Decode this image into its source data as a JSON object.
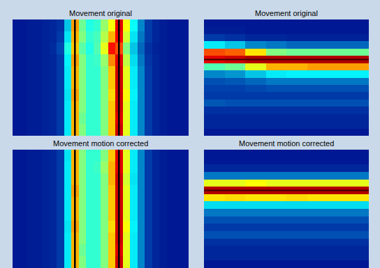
{
  "chart_data": [
    {
      "type": "heatmap",
      "title": "Movement original",
      "color": "Jet",
      "tick_labels": false,
      "zlim": [
        0,
        1
      ],
      "vlines": [
        8,
        14
      ],
      "cells": [
        [
          0.05,
          0.05,
          0.06,
          0.06,
          0.07,
          0.08,
          0.1,
          0.3,
          0.72,
          0.48,
          0.4,
          0.42,
          0.52,
          0.62,
          0.9,
          0.62,
          0.38,
          0.22,
          0.12,
          0.08,
          0.06,
          0.05,
          0.05,
          0.05
        ],
        [
          0.05,
          0.05,
          0.06,
          0.06,
          0.07,
          0.08,
          0.12,
          0.34,
          0.7,
          0.5,
          0.42,
          0.44,
          0.55,
          0.7,
          0.88,
          0.58,
          0.34,
          0.2,
          0.12,
          0.08,
          0.06,
          0.05,
          0.05,
          0.05
        ],
        [
          0.05,
          0.05,
          0.06,
          0.06,
          0.07,
          0.09,
          0.14,
          0.4,
          0.68,
          0.46,
          0.4,
          0.45,
          0.6,
          0.86,
          0.8,
          0.5,
          0.3,
          0.18,
          0.1,
          0.07,
          0.06,
          0.05,
          0.05,
          0.05
        ],
        [
          0.05,
          0.05,
          0.06,
          0.06,
          0.07,
          0.08,
          0.12,
          0.36,
          0.72,
          0.5,
          0.42,
          0.43,
          0.52,
          0.74,
          0.9,
          0.56,
          0.33,
          0.2,
          0.11,
          0.08,
          0.06,
          0.05,
          0.05,
          0.05
        ],
        [
          0.05,
          0.05,
          0.06,
          0.06,
          0.07,
          0.08,
          0.12,
          0.35,
          0.7,
          0.5,
          0.42,
          0.42,
          0.5,
          0.68,
          0.92,
          0.6,
          0.35,
          0.22,
          0.12,
          0.08,
          0.06,
          0.05,
          0.05,
          0.05
        ],
        [
          0.05,
          0.05,
          0.06,
          0.06,
          0.07,
          0.08,
          0.12,
          0.35,
          0.7,
          0.5,
          0.42,
          0.42,
          0.5,
          0.68,
          0.92,
          0.6,
          0.35,
          0.22,
          0.12,
          0.08,
          0.06,
          0.05,
          0.05,
          0.05
        ],
        [
          0.05,
          0.05,
          0.06,
          0.06,
          0.07,
          0.08,
          0.12,
          0.34,
          0.72,
          0.5,
          0.42,
          0.42,
          0.5,
          0.66,
          0.92,
          0.62,
          0.36,
          0.22,
          0.12,
          0.08,
          0.06,
          0.05,
          0.05,
          0.05
        ],
        [
          0.05,
          0.05,
          0.06,
          0.06,
          0.07,
          0.08,
          0.12,
          0.35,
          0.7,
          0.5,
          0.42,
          0.42,
          0.5,
          0.68,
          0.92,
          0.6,
          0.35,
          0.22,
          0.12,
          0.08,
          0.06,
          0.05,
          0.05,
          0.05
        ],
        [
          0.05,
          0.05,
          0.06,
          0.06,
          0.07,
          0.08,
          0.12,
          0.35,
          0.7,
          0.48,
          0.42,
          0.42,
          0.5,
          0.68,
          0.9,
          0.6,
          0.35,
          0.22,
          0.12,
          0.08,
          0.06,
          0.05,
          0.05,
          0.05
        ],
        [
          0.05,
          0.05,
          0.06,
          0.06,
          0.07,
          0.08,
          0.12,
          0.35,
          0.7,
          0.5,
          0.42,
          0.42,
          0.5,
          0.68,
          0.92,
          0.6,
          0.35,
          0.22,
          0.12,
          0.08,
          0.06,
          0.05,
          0.05,
          0.05
        ]
      ]
    },
    {
      "type": "heatmap",
      "title": "Movement original",
      "color": "Jet",
      "tick_labels": false,
      "zlim": [
        0,
        1
      ],
      "hlines": [
        5
      ],
      "cells": [
        [
          0.05,
          0.05,
          0.05,
          0.05,
          0.05,
          0.05,
          0.05,
          0.05
        ],
        [
          0.06,
          0.06,
          0.05,
          0.05,
          0.05,
          0.05,
          0.05,
          0.05
        ],
        [
          0.12,
          0.1,
          0.08,
          0.08,
          0.07,
          0.07,
          0.07,
          0.07
        ],
        [
          0.35,
          0.3,
          0.22,
          0.2,
          0.18,
          0.18,
          0.18,
          0.18
        ],
        [
          0.8,
          0.78,
          0.65,
          0.5,
          0.48,
          0.48,
          0.48,
          0.48
        ],
        [
          0.9,
          0.92,
          0.95,
          0.95,
          0.95,
          0.95,
          0.95,
          0.95
        ],
        [
          0.45,
          0.48,
          0.6,
          0.7,
          0.7,
          0.72,
          0.72,
          0.72
        ],
        [
          0.22,
          0.24,
          0.3,
          0.35,
          0.36,
          0.36,
          0.36,
          0.36
        ],
        [
          0.15,
          0.16,
          0.18,
          0.2,
          0.2,
          0.2,
          0.2,
          0.2
        ],
        [
          0.13,
          0.13,
          0.14,
          0.15,
          0.15,
          0.15,
          0.15,
          0.15
        ],
        [
          0.12,
          0.12,
          0.12,
          0.12,
          0.12,
          0.12,
          0.12,
          0.12
        ],
        [
          0.16,
          0.15,
          0.15,
          0.15,
          0.15,
          0.15,
          0.15,
          0.15
        ],
        [
          0.1,
          0.1,
          0.1,
          0.1,
          0.1,
          0.1,
          0.1,
          0.1
        ],
        [
          0.08,
          0.08,
          0.08,
          0.08,
          0.08,
          0.08,
          0.08,
          0.08
        ],
        [
          0.08,
          0.08,
          0.08,
          0.08,
          0.08,
          0.08,
          0.08,
          0.08
        ],
        [
          0.05,
          0.05,
          0.05,
          0.05,
          0.05,
          0.05,
          0.05,
          0.05
        ]
      ]
    },
    {
      "type": "heatmap",
      "title": "Movement motion corrected",
      "color": "Jet",
      "tick_labels": false,
      "zlim": [
        0,
        1
      ],
      "vlines": [
        8,
        14
      ],
      "cells": [
        [
          0.05,
          0.05,
          0.06,
          0.06,
          0.07,
          0.08,
          0.12,
          0.34,
          0.7,
          0.5,
          0.42,
          0.42,
          0.5,
          0.68,
          0.9,
          0.6,
          0.35,
          0.22,
          0.12,
          0.08,
          0.06,
          0.05,
          0.05,
          0.05
        ],
        [
          0.05,
          0.05,
          0.06,
          0.06,
          0.07,
          0.08,
          0.12,
          0.35,
          0.7,
          0.5,
          0.42,
          0.43,
          0.52,
          0.7,
          0.9,
          0.6,
          0.35,
          0.22,
          0.12,
          0.08,
          0.06,
          0.05,
          0.05,
          0.05
        ],
        [
          0.05,
          0.05,
          0.06,
          0.06,
          0.07,
          0.08,
          0.12,
          0.35,
          0.7,
          0.5,
          0.42,
          0.42,
          0.5,
          0.7,
          0.92,
          0.58,
          0.34,
          0.22,
          0.12,
          0.08,
          0.06,
          0.05,
          0.05,
          0.05
        ],
        [
          0.05,
          0.05,
          0.06,
          0.06,
          0.07,
          0.08,
          0.12,
          0.35,
          0.72,
          0.5,
          0.42,
          0.42,
          0.5,
          0.68,
          0.92,
          0.6,
          0.35,
          0.22,
          0.12,
          0.08,
          0.06,
          0.05,
          0.05,
          0.05
        ],
        [
          0.05,
          0.05,
          0.06,
          0.06,
          0.07,
          0.08,
          0.12,
          0.35,
          0.7,
          0.5,
          0.42,
          0.42,
          0.5,
          0.68,
          0.92,
          0.6,
          0.35,
          0.22,
          0.12,
          0.08,
          0.06,
          0.05,
          0.05,
          0.05
        ],
        [
          0.05,
          0.05,
          0.06,
          0.06,
          0.07,
          0.08,
          0.12,
          0.35,
          0.7,
          0.5,
          0.42,
          0.42,
          0.5,
          0.68,
          0.92,
          0.6,
          0.35,
          0.22,
          0.12,
          0.08,
          0.06,
          0.05,
          0.05,
          0.05
        ],
        [
          0.05,
          0.05,
          0.06,
          0.06,
          0.07,
          0.08,
          0.12,
          0.34,
          0.72,
          0.5,
          0.42,
          0.42,
          0.5,
          0.66,
          0.92,
          0.62,
          0.36,
          0.22,
          0.12,
          0.08,
          0.06,
          0.05,
          0.05,
          0.05
        ],
        [
          0.05,
          0.05,
          0.06,
          0.06,
          0.07,
          0.08,
          0.12,
          0.35,
          0.7,
          0.5,
          0.42,
          0.42,
          0.5,
          0.68,
          0.92,
          0.6,
          0.35,
          0.22,
          0.12,
          0.08,
          0.06,
          0.05,
          0.05,
          0.05
        ],
        [
          0.05,
          0.05,
          0.06,
          0.06,
          0.07,
          0.08,
          0.12,
          0.35,
          0.7,
          0.48,
          0.42,
          0.42,
          0.5,
          0.68,
          0.9,
          0.6,
          0.35,
          0.22,
          0.12,
          0.08,
          0.06,
          0.05,
          0.05,
          0.05
        ],
        [
          0.05,
          0.05,
          0.06,
          0.06,
          0.07,
          0.08,
          0.12,
          0.35,
          0.7,
          0.5,
          0.42,
          0.42,
          0.5,
          0.68,
          0.92,
          0.6,
          0.35,
          0.22,
          0.12,
          0.08,
          0.06,
          0.05,
          0.05,
          0.05
        ]
      ]
    },
    {
      "type": "heatmap",
      "title": "Movement motion corrected",
      "color": "Jet",
      "tick_labels": false,
      "zlim": [
        0,
        1
      ],
      "hlines": [
        5
      ],
      "cells": [
        [
          0.05,
          0.05,
          0.05,
          0.05,
          0.05,
          0.05,
          0.05,
          0.05
        ],
        [
          0.05,
          0.05,
          0.05,
          0.05,
          0.05,
          0.05,
          0.05,
          0.05
        ],
        [
          0.08,
          0.08,
          0.08,
          0.08,
          0.08,
          0.08,
          0.08,
          0.08
        ],
        [
          0.2,
          0.2,
          0.2,
          0.2,
          0.2,
          0.2,
          0.2,
          0.2
        ],
        [
          0.6,
          0.6,
          0.62,
          0.6,
          0.6,
          0.6,
          0.6,
          0.6
        ],
        [
          0.95,
          0.95,
          0.95,
          0.95,
          0.95,
          0.95,
          0.95,
          0.95
        ],
        [
          0.65,
          0.66,
          0.65,
          0.65,
          0.66,
          0.65,
          0.65,
          0.65
        ],
        [
          0.33,
          0.33,
          0.33,
          0.33,
          0.33,
          0.33,
          0.33,
          0.33
        ],
        [
          0.2,
          0.2,
          0.2,
          0.2,
          0.2,
          0.2,
          0.2,
          0.2
        ],
        [
          0.15,
          0.15,
          0.15,
          0.15,
          0.15,
          0.15,
          0.15,
          0.15
        ],
        [
          0.12,
          0.12,
          0.12,
          0.12,
          0.12,
          0.12,
          0.12,
          0.12
        ],
        [
          0.15,
          0.15,
          0.15,
          0.15,
          0.15,
          0.15,
          0.15,
          0.15
        ],
        [
          0.1,
          0.1,
          0.1,
          0.1,
          0.1,
          0.1,
          0.1,
          0.1
        ],
        [
          0.08,
          0.08,
          0.08,
          0.08,
          0.08,
          0.08,
          0.08,
          0.08
        ],
        [
          0.08,
          0.08,
          0.08,
          0.08,
          0.08,
          0.08,
          0.08,
          0.08
        ],
        [
          0.05,
          0.05,
          0.05,
          0.05,
          0.05,
          0.05,
          0.05,
          0.05
        ]
      ]
    }
  ]
}
